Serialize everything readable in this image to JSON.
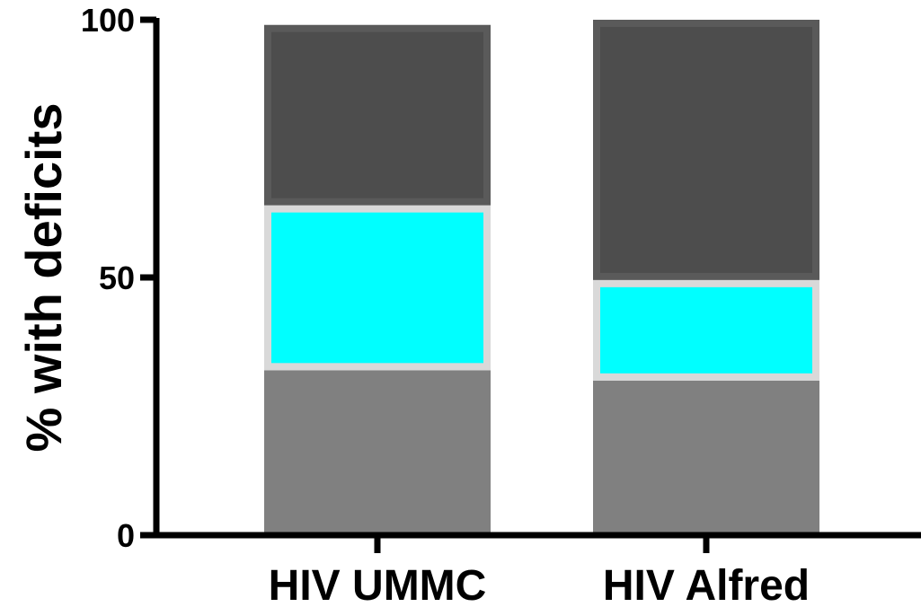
{
  "chart_data": {
    "type": "bar",
    "stacked": true,
    "categories": [
      "HIV UMMC",
      "HIV Alfred"
    ],
    "series": [
      {
        "values": [
          32,
          30
        ],
        "color": "#808080",
        "outline": "#808080"
      },
      {
        "values": [
          32,
          19.5
        ],
        "color": "#00ffff",
        "outline": "#d9d9d9"
      },
      {
        "values": [
          35,
          50.5
        ],
        "color": "#4d4d4d",
        "outline": "#5a5a5a"
      }
    ],
    "ylabel": "% with deficits",
    "ylim": [
      0,
      100
    ],
    "yticks": [
      0,
      50,
      100
    ],
    "grid": false,
    "legend": "none"
  }
}
